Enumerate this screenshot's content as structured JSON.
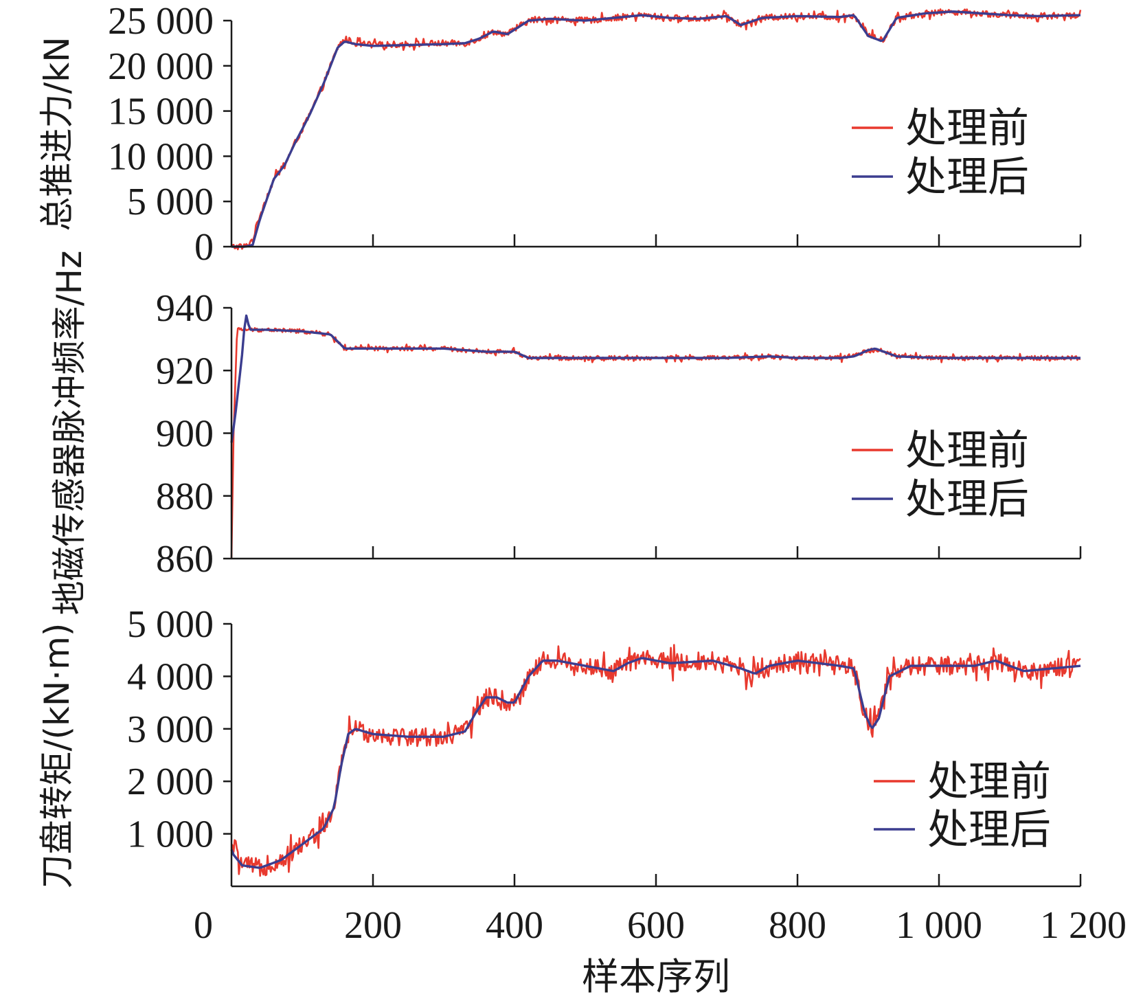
{
  "chart_data": [
    {
      "type": "line",
      "ylabel": "总推进力/kN",
      "ylim": [
        0,
        25000
      ],
      "yticks": [
        0,
        5000,
        10000,
        15000,
        20000,
        25000
      ],
      "ytick_labels": [
        "0",
        "5 000",
        "10 000",
        "15 000",
        "20 000",
        "25 000"
      ],
      "xlim": [
        0,
        1200
      ],
      "legend": [
        "处理前",
        "处理后"
      ],
      "legend_position": "right",
      "series": [
        {
          "name": "处理前",
          "color": "#e8392e",
          "noise": 350,
          "x": [
            0,
            20,
            30,
            40,
            60,
            75,
            90,
            110,
            130,
            150,
            160,
            175,
            200,
            250,
            300,
            330,
            350,
            370,
            390,
            420,
            450,
            500,
            540,
            580,
            620,
            660,
            700,
            720,
            750,
            800,
            860,
            880,
            900,
            920,
            940,
            980,
            1020,
            1060,
            1100,
            1140,
            1200
          ],
          "y": [
            0,
            0,
            800,
            3500,
            7500,
            9000,
            11500,
            14500,
            18000,
            22000,
            23000,
            22500,
            22300,
            22400,
            22500,
            22500,
            23000,
            23800,
            23500,
            25000,
            25200,
            25000,
            25300,
            25600,
            25300,
            25200,
            25500,
            24500,
            25300,
            25500,
            25400,
            25600,
            23500,
            22800,
            25300,
            25800,
            26000,
            25800,
            25600,
            25500,
            25600
          ]
        },
        {
          "name": "处理后",
          "color": "#3b3d8f",
          "noise": 0,
          "x": [
            0,
            20,
            30,
            40,
            60,
            75,
            90,
            110,
            130,
            150,
            160,
            175,
            200,
            250,
            300,
            330,
            350,
            370,
            390,
            420,
            450,
            500,
            540,
            580,
            620,
            660,
            700,
            720,
            750,
            800,
            860,
            880,
            900,
            920,
            940,
            980,
            1020,
            1060,
            1100,
            1140,
            1200
          ],
          "y": [
            0,
            0,
            200,
            3000,
            7500,
            9000,
            11500,
            14500,
            18000,
            22000,
            22700,
            22400,
            22200,
            22300,
            22400,
            22500,
            23000,
            23800,
            23500,
            25000,
            25200,
            25000,
            25300,
            25600,
            25300,
            25200,
            25500,
            24500,
            25300,
            25500,
            25400,
            25600,
            23300,
            22700,
            25300,
            25800,
            26000,
            25800,
            25600,
            25500,
            25600
          ]
        }
      ]
    },
    {
      "type": "line",
      "ylabel": "地磁传感器脉冲频率/Hz",
      "ylim": [
        860,
        940
      ],
      "yticks": [
        860,
        880,
        900,
        920,
        940
      ],
      "ytick_labels": [
        "860",
        "880",
        "900",
        "920",
        "940"
      ],
      "xlim": [
        0,
        1200
      ],
      "legend": [
        "处理前",
        "处理后"
      ],
      "legend_position": "right",
      "series": [
        {
          "name": "处理前",
          "color": "#e8392e",
          "noise": 0.7,
          "x": [
            0,
            3,
            8,
            12,
            20,
            50,
            100,
            140,
            160,
            200,
            300,
            360,
            400,
            420,
            450,
            550,
            650,
            700,
            760,
            800,
            860,
            880,
            900,
            910,
            940,
            1000,
            1100,
            1200
          ],
          "y": [
            860,
            900,
            933,
            933,
            933,
            933,
            932.5,
            931.5,
            927,
            927,
            927,
            926,
            926,
            924,
            924,
            924,
            924,
            924,
            924.5,
            924,
            924,
            924.5,
            926.5,
            927,
            924.5,
            924,
            924,
            924
          ]
        },
        {
          "name": "处理后",
          "color": "#3b3d8f",
          "noise": 0,
          "x": [
            0,
            5,
            10,
            15,
            18,
            20,
            22,
            25,
            30,
            50,
            100,
            140,
            160,
            200,
            300,
            360,
            400,
            420,
            450,
            550,
            650,
            700,
            760,
            800,
            860,
            880,
            900,
            910,
            940,
            1000,
            1100,
            1200
          ],
          "y": [
            897,
            905,
            915,
            925,
            933,
            937,
            938,
            933,
            933,
            933,
            932.5,
            931.5,
            927,
            927,
            927,
            926,
            926,
            924,
            924,
            924,
            924,
            924,
            924.5,
            924,
            924,
            924.5,
            926.5,
            927,
            924.5,
            924,
            924,
            924
          ]
        }
      ]
    },
    {
      "type": "line",
      "ylabel": "刀盘转矩/(kN·m)",
      "ylim": [
        0,
        5000
      ],
      "yticks": [
        1000,
        2000,
        3000,
        4000,
        5000
      ],
      "ytick_labels": [
        "1 000",
        "2 000",
        "3 000",
        "4 000",
        "5 000"
      ],
      "xlim": [
        0,
        1200
      ],
      "xticks": [
        0,
        200,
        400,
        600,
        800,
        1000,
        1200
      ],
      "xtick_labels": [
        "0",
        "200",
        "400",
        "600",
        "800",
        "1 000",
        "1 200"
      ],
      "xlabel": "样本序列",
      "legend": [
        "处理前",
        "处理后"
      ],
      "legend_position": "right",
      "series": [
        {
          "name": "处理前",
          "color": "#e8392e",
          "noise": 180,
          "x": [
            0,
            3,
            15,
            40,
            70,
            100,
            130,
            145,
            155,
            165,
            175,
            200,
            250,
            300,
            330,
            345,
            360,
            375,
            390,
            400,
            420,
            440,
            460,
            500,
            540,
            560,
            580,
            620,
            680,
            720,
            740,
            760,
            800,
            860,
            880,
            895,
            905,
            915,
            930,
            960,
            1000,
            1050,
            1080,
            1120,
            1160,
            1200
          ],
          "y": [
            700,
            800,
            400,
            350,
            500,
            800,
            1100,
            1500,
            2300,
            2900,
            3000,
            2900,
            2850,
            2850,
            2950,
            3300,
            3600,
            3600,
            3500,
            3500,
            4000,
            4300,
            4300,
            4200,
            4100,
            4250,
            4350,
            4250,
            4300,
            4150,
            4050,
            4200,
            4300,
            4200,
            4150,
            3300,
            3000,
            3200,
            4000,
            4200,
            4200,
            4200,
            4300,
            4100,
            4150,
            4200
          ]
        },
        {
          "name": "处理后",
          "color": "#3b3d8f",
          "noise": 0,
          "x": [
            0,
            3,
            15,
            40,
            70,
            100,
            130,
            145,
            155,
            165,
            175,
            200,
            250,
            300,
            330,
            345,
            360,
            375,
            390,
            400,
            420,
            440,
            460,
            500,
            540,
            560,
            580,
            620,
            680,
            720,
            740,
            760,
            800,
            860,
            880,
            895,
            905,
            915,
            930,
            960,
            1000,
            1050,
            1080,
            1120,
            1160,
            1200
          ],
          "y": [
            700,
            600,
            400,
            350,
            500,
            800,
            1100,
            1500,
            2300,
            2900,
            3000,
            2900,
            2850,
            2850,
            2950,
            3300,
            3600,
            3600,
            3500,
            3500,
            4000,
            4300,
            4300,
            4200,
            4100,
            4250,
            4350,
            4250,
            4300,
            4150,
            4050,
            4200,
            4300,
            4200,
            4150,
            3300,
            3000,
            3200,
            4000,
            4200,
            4200,
            4200,
            4300,
            4100,
            4150,
            4200
          ]
        }
      ]
    }
  ]
}
